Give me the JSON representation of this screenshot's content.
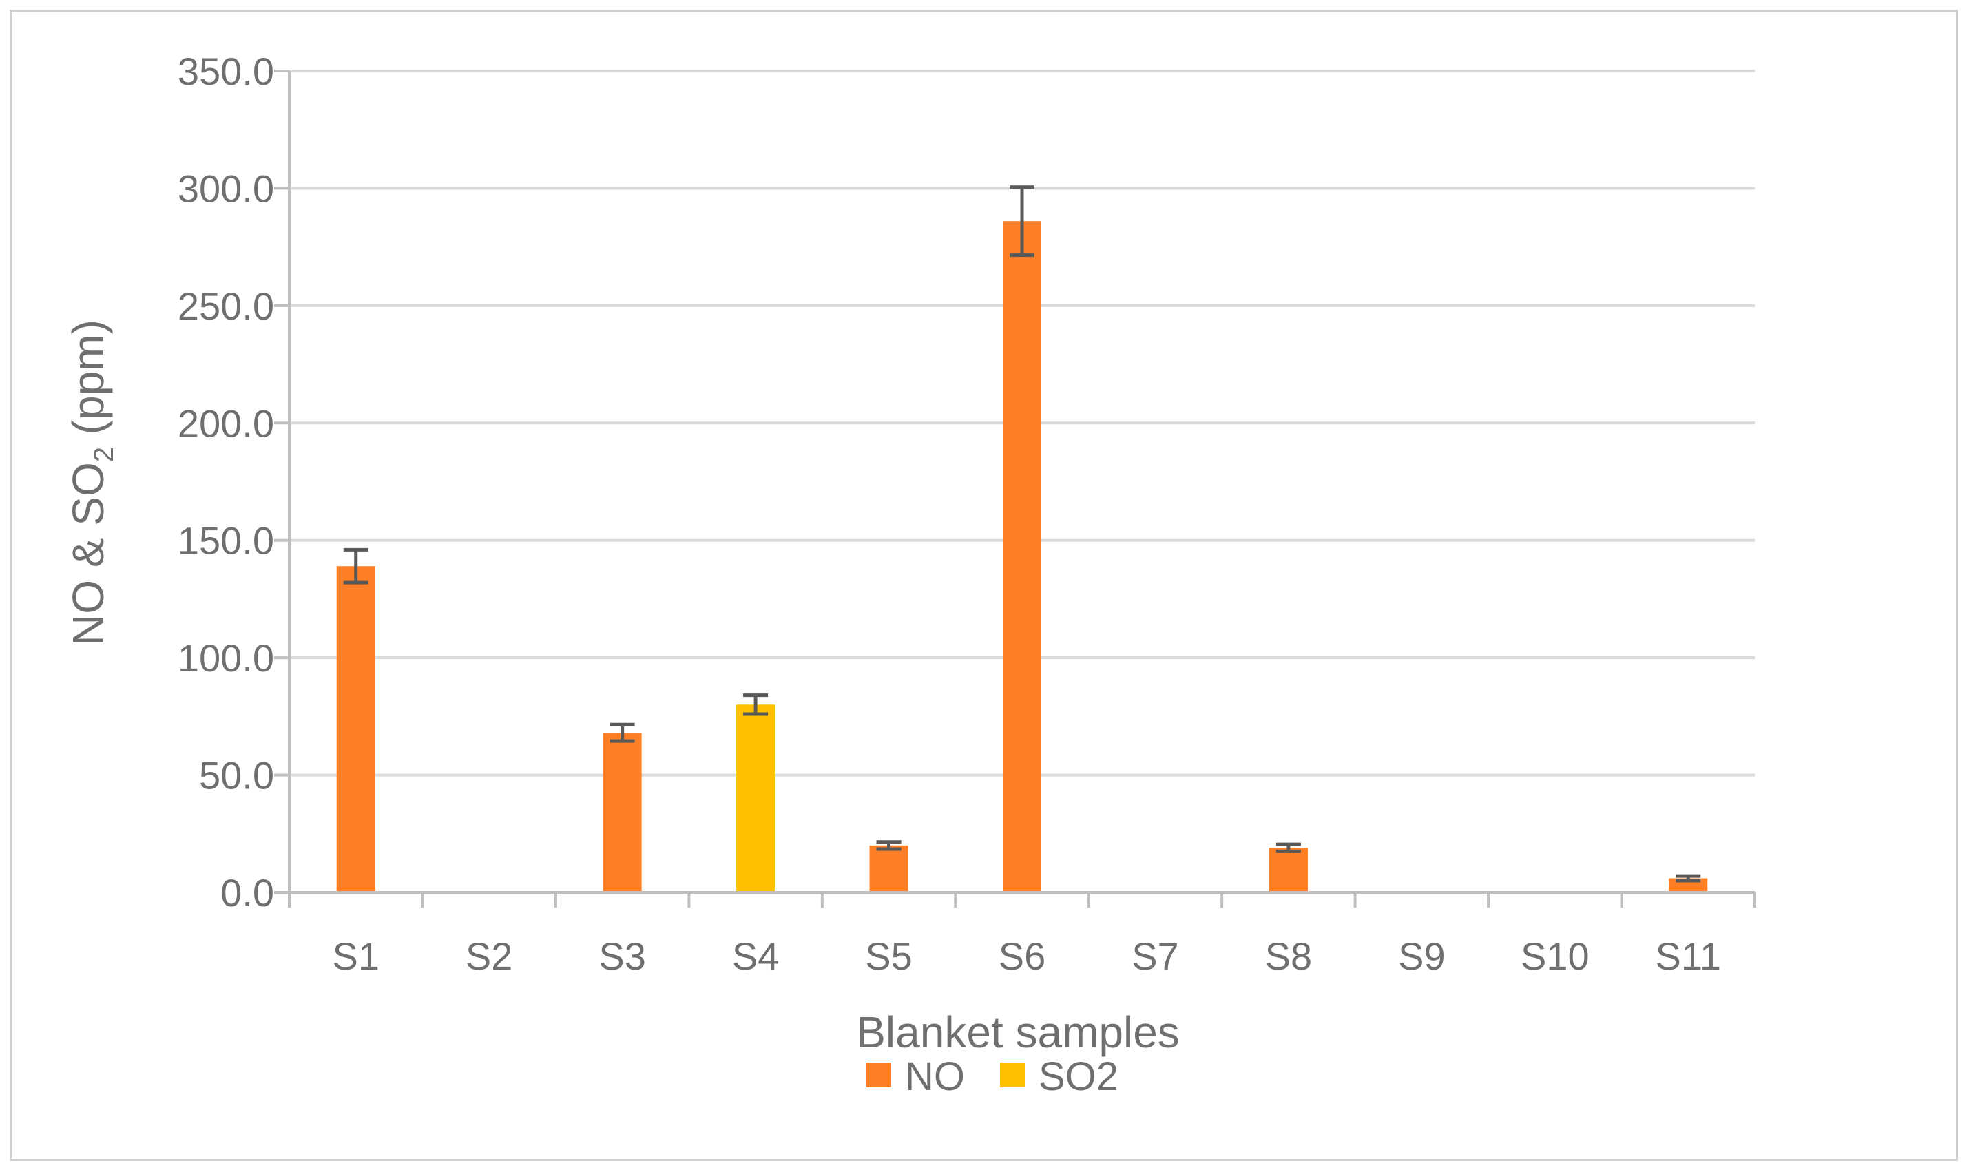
{
  "chart_data": {
    "type": "bar",
    "xlabel": "Blanket samples",
    "ylabel_main": "NO & SO",
    "ylabel_sub": "2",
    "ylabel_unit": " (ppm)",
    "ylim": [
      0,
      350
    ],
    "yticks": [
      "0.0",
      "50.0",
      "100.0",
      "150.0",
      "200.0",
      "250.0",
      "300.0",
      "350.0"
    ],
    "grid": true,
    "legend_position": "bottom",
    "categories": [
      "S1",
      "S2",
      "S3",
      "S4",
      "S5",
      "S6",
      "S7",
      "S8",
      "S9",
      "S10",
      "S11"
    ],
    "series": [
      {
        "name": "NO",
        "color": "#ff7f27",
        "values": [
          139,
          0,
          68,
          0,
          20,
          286,
          0,
          19,
          0,
          0,
          6
        ],
        "errors": [
          7,
          0,
          3.5,
          0,
          1.5,
          14.5,
          0,
          1.5,
          0,
          0,
          1
        ]
      },
      {
        "name": "SO2",
        "color": "#ffc000",
        "values": [
          0,
          0,
          0,
          80,
          0,
          0,
          0,
          0,
          0,
          0,
          0
        ],
        "errors": [
          0,
          0,
          0,
          4,
          0,
          0,
          0,
          0,
          0,
          0,
          0
        ]
      }
    ]
  },
  "colors": {
    "grid": "#d9d9d9",
    "axis": "#bfbfbf",
    "text": "#6f6f6f",
    "error_bar": "#595959"
  }
}
